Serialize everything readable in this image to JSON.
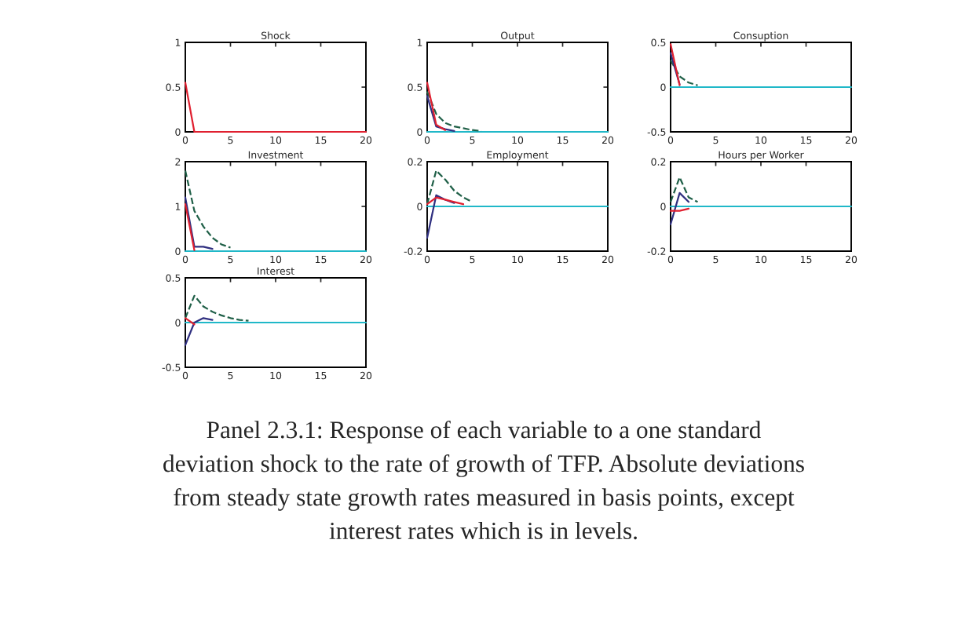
{
  "chart_data": [
    {
      "type": "line",
      "title": "Shock",
      "x": [
        0,
        1,
        2,
        3,
        4,
        5,
        6,
        7,
        8,
        9,
        10,
        11,
        12,
        13,
        14,
        15,
        16,
        17,
        18,
        19,
        20
      ],
      "xlim": [
        0,
        20
      ],
      "xticks": [
        0,
        5,
        10,
        15,
        20
      ],
      "ylim": [
        0,
        1
      ],
      "yticks": [
        0,
        0.5,
        1
      ],
      "grid": false,
      "series": [
        {
          "color": "#e02030",
          "values": [
            0.55,
            0,
            0,
            0,
            0,
            0,
            0,
            0,
            0,
            0,
            0,
            0,
            0,
            0,
            0,
            0,
            0,
            0,
            0,
            0,
            0
          ]
        }
      ]
    },
    {
      "type": "line",
      "title": "Output",
      "x": [
        0,
        1,
        2,
        3,
        4,
        5,
        6,
        7,
        8,
        9,
        10,
        11,
        12,
        13,
        14,
        15,
        16,
        17,
        18,
        19,
        20
      ],
      "xlim": [
        0,
        20
      ],
      "xticks": [
        0,
        5,
        10,
        15,
        20
      ],
      "ylim": [
        0,
        1
      ],
      "yticks": [
        0,
        0.5,
        1
      ],
      "grid": false,
      "series": [
        {
          "color": "#20b8c8",
          "values": [
            0,
            0,
            0,
            0,
            0,
            0,
            0,
            0,
            0,
            0,
            0,
            0,
            0,
            0,
            0,
            0,
            0,
            0,
            0,
            0,
            0
          ]
        },
        {
          "color": "#206048",
          "line_style": "dashed",
          "values": [
            0.45,
            0.2,
            0.1,
            0.06,
            0.04,
            0.02,
            0.01,
            null,
            null,
            null,
            null,
            null,
            null,
            null,
            null,
            null,
            null,
            null,
            null,
            null,
            null
          ]
        },
        {
          "color": "#303080",
          "values": [
            0.4,
            0.06,
            0.03,
            0.01,
            null,
            null,
            null,
            null,
            null,
            null,
            null,
            null,
            null,
            null,
            null,
            null,
            null,
            null,
            null,
            null,
            null
          ]
        },
        {
          "color": "#e02030",
          "values": [
            0.55,
            0.08,
            0.02,
            null,
            null,
            null,
            null,
            null,
            null,
            null,
            null,
            null,
            null,
            null,
            null,
            null,
            null,
            null,
            null,
            null,
            null
          ]
        }
      ]
    },
    {
      "type": "line",
      "title": "Consuption",
      "x": [
        0,
        1,
        2,
        3,
        4,
        5,
        6,
        7,
        8,
        9,
        10,
        11,
        12,
        13,
        14,
        15,
        16,
        17,
        18,
        19,
        20
      ],
      "xlim": [
        0,
        20
      ],
      "xticks": [
        0,
        5,
        10,
        15,
        20
      ],
      "ylim": [
        -0.5,
        0.5
      ],
      "yticks": [
        -0.5,
        0,
        0.5
      ],
      "grid": false,
      "series": [
        {
          "color": "#20b8c8",
          "values": [
            0,
            0,
            0,
            0,
            0,
            0,
            0,
            0,
            0,
            0,
            0,
            0,
            0,
            0,
            0,
            0,
            0,
            0,
            0,
            0,
            0
          ]
        },
        {
          "color": "#206048",
          "line_style": "dashed",
          "values": [
            0.3,
            0.12,
            0.05,
            0.02,
            null,
            null,
            null,
            null,
            null,
            null,
            null,
            null,
            null,
            null,
            null,
            null,
            null,
            null,
            null,
            null,
            null
          ]
        },
        {
          "color": "#303080",
          "values": [
            0.38,
            0.03,
            null,
            null,
            null,
            null,
            null,
            null,
            null,
            null,
            null,
            null,
            null,
            null,
            null,
            null,
            null,
            null,
            null,
            null,
            null
          ]
        },
        {
          "color": "#e02030",
          "values": [
            0.48,
            0.02,
            null,
            null,
            null,
            null,
            null,
            null,
            null,
            null,
            null,
            null,
            null,
            null,
            null,
            null,
            null,
            null,
            null,
            null,
            null
          ]
        }
      ]
    },
    {
      "type": "line",
      "title": "Investment",
      "x": [
        0,
        1,
        2,
        3,
        4,
        5,
        6,
        7,
        8,
        9,
        10,
        11,
        12,
        13,
        14,
        15,
        16,
        17,
        18,
        19,
        20
      ],
      "xlim": [
        0,
        20
      ],
      "xticks": [
        0,
        5,
        10,
        15,
        20
      ],
      "ylim": [
        0,
        2
      ],
      "yticks": [
        0,
        1,
        2
      ],
      "grid": false,
      "series": [
        {
          "color": "#20b8c8",
          "values": [
            0,
            0,
            0,
            0,
            0,
            0,
            0,
            0,
            0,
            0,
            0,
            0,
            0,
            0,
            0,
            0,
            0,
            0,
            0,
            0,
            0
          ]
        },
        {
          "color": "#206048",
          "line_style": "dashed",
          "values": [
            1.8,
            0.9,
            0.55,
            0.3,
            0.15,
            0.08,
            null,
            null,
            null,
            null,
            null,
            null,
            null,
            null,
            null,
            null,
            null,
            null,
            null,
            null,
            null
          ]
        },
        {
          "color": "#303080",
          "values": [
            1.2,
            0.1,
            0.1,
            0.05,
            null,
            null,
            null,
            null,
            null,
            null,
            null,
            null,
            null,
            null,
            null,
            null,
            null,
            null,
            null,
            null,
            null
          ]
        },
        {
          "color": "#e02030",
          "values": [
            1.05,
            0.02,
            null,
            null,
            null,
            null,
            null,
            null,
            null,
            null,
            null,
            null,
            null,
            null,
            null,
            null,
            null,
            null,
            null,
            null,
            null
          ]
        }
      ]
    },
    {
      "type": "line",
      "title": "Employment",
      "x": [
        0,
        1,
        2,
        3,
        4,
        5,
        6,
        7,
        8,
        9,
        10,
        11,
        12,
        13,
        14,
        15,
        16,
        17,
        18,
        19,
        20
      ],
      "xlim": [
        0,
        20
      ],
      "xticks": [
        0,
        5,
        10,
        15,
        20
      ],
      "ylim": [
        -0.2,
        0.2
      ],
      "yticks": [
        -0.2,
        0,
        0.2
      ],
      "grid": false,
      "series": [
        {
          "color": "#20b8c8",
          "values": [
            0,
            0,
            0,
            0,
            0,
            0,
            0,
            0,
            0,
            0,
            0,
            0,
            0,
            0,
            0,
            0,
            0,
            0,
            0,
            0,
            0
          ]
        },
        {
          "color": "#206048",
          "line_style": "dashed",
          "values": [
            0.01,
            0.16,
            0.12,
            0.07,
            0.04,
            0.02,
            null,
            null,
            null,
            null,
            null,
            null,
            null,
            null,
            null,
            null,
            null,
            null,
            null,
            null,
            null
          ]
        },
        {
          "color": "#303080",
          "values": [
            -0.14,
            0.05,
            0.03,
            0.015,
            null,
            null,
            null,
            null,
            null,
            null,
            null,
            null,
            null,
            null,
            null,
            null,
            null,
            null,
            null,
            null,
            null
          ]
        },
        {
          "color": "#e02030",
          "values": [
            0.01,
            0.04,
            0.03,
            0.02,
            0.01,
            null,
            null,
            null,
            null,
            null,
            null,
            null,
            null,
            null,
            null,
            null,
            null,
            null,
            null,
            null,
            null
          ]
        }
      ]
    },
    {
      "type": "line",
      "title": "Hours per Worker",
      "x": [
        0,
        1,
        2,
        3,
        4,
        5,
        6,
        7,
        8,
        9,
        10,
        11,
        12,
        13,
        14,
        15,
        16,
        17,
        18,
        19,
        20
      ],
      "xlim": [
        0,
        20
      ],
      "xticks": [
        0,
        5,
        10,
        15,
        20
      ],
      "ylim": [
        -0.2,
        0.2
      ],
      "yticks": [
        -0.2,
        0,
        0.2
      ],
      "grid": false,
      "series": [
        {
          "color": "#20b8c8",
          "values": [
            0,
            0,
            0,
            0,
            0,
            0,
            0,
            0,
            0,
            0,
            0,
            0,
            0,
            0,
            0,
            0,
            0,
            0,
            0,
            0,
            0
          ]
        },
        {
          "color": "#206048",
          "line_style": "dashed",
          "values": [
            0.02,
            0.13,
            0.04,
            0.02,
            null,
            null,
            null,
            null,
            null,
            null,
            null,
            null,
            null,
            null,
            null,
            null,
            null,
            null,
            null,
            null,
            null
          ]
        },
        {
          "color": "#303080",
          "values": [
            -0.08,
            0.06,
            0.02,
            null,
            null,
            null,
            null,
            null,
            null,
            null,
            null,
            null,
            null,
            null,
            null,
            null,
            null,
            null,
            null,
            null,
            null
          ]
        },
        {
          "color": "#e02030",
          "values": [
            -0.02,
            -0.02,
            -0.01,
            null,
            null,
            null,
            null,
            null,
            null,
            null,
            null,
            null,
            null,
            null,
            null,
            null,
            null,
            null,
            null,
            null,
            null
          ]
        }
      ]
    },
    {
      "type": "line",
      "title": "Interest",
      "x": [
        0,
        1,
        2,
        3,
        4,
        5,
        6,
        7,
        8,
        9,
        10,
        11,
        12,
        13,
        14,
        15,
        16,
        17,
        18,
        19,
        20
      ],
      "xlim": [
        0,
        20
      ],
      "xticks": [
        0,
        5,
        10,
        15,
        20
      ],
      "ylim": [
        -0.5,
        0.5
      ],
      "yticks": [
        -0.5,
        0,
        0.5
      ],
      "grid": false,
      "series": [
        {
          "color": "#20b8c8",
          "values": [
            0,
            0,
            0,
            0,
            0,
            0,
            0,
            0,
            0,
            0,
            0,
            0,
            0,
            0,
            0,
            0,
            0,
            0,
            0,
            0,
            0
          ]
        },
        {
          "color": "#206048",
          "line_style": "dashed",
          "values": [
            0.05,
            0.3,
            0.18,
            0.12,
            0.08,
            0.05,
            0.03,
            0.02,
            null,
            null,
            null,
            null,
            null,
            null,
            null,
            null,
            null,
            null,
            null,
            null,
            null
          ]
        },
        {
          "color": "#303080",
          "values": [
            -0.25,
            0,
            0.05,
            0.03,
            null,
            null,
            null,
            null,
            null,
            null,
            null,
            null,
            null,
            null,
            null,
            null,
            null,
            null,
            null,
            null,
            null
          ]
        },
        {
          "color": "#e02030",
          "values": [
            0.05,
            -0.02,
            null,
            null,
            null,
            null,
            null,
            null,
            null,
            null,
            null,
            null,
            null,
            null,
            null,
            null,
            null,
            null,
            null,
            null,
            null
          ]
        }
      ]
    },
    {
      "type": "other",
      "annotations": [
        "Panel 2.3.1: Response of each variable to a one standard",
        "deviation shock to the rate of growth of TFP. Absolute deviations",
        "from steady state growth rates measured in basis points, except",
        "interest rates which is in levels."
      ]
    }
  ]
}
